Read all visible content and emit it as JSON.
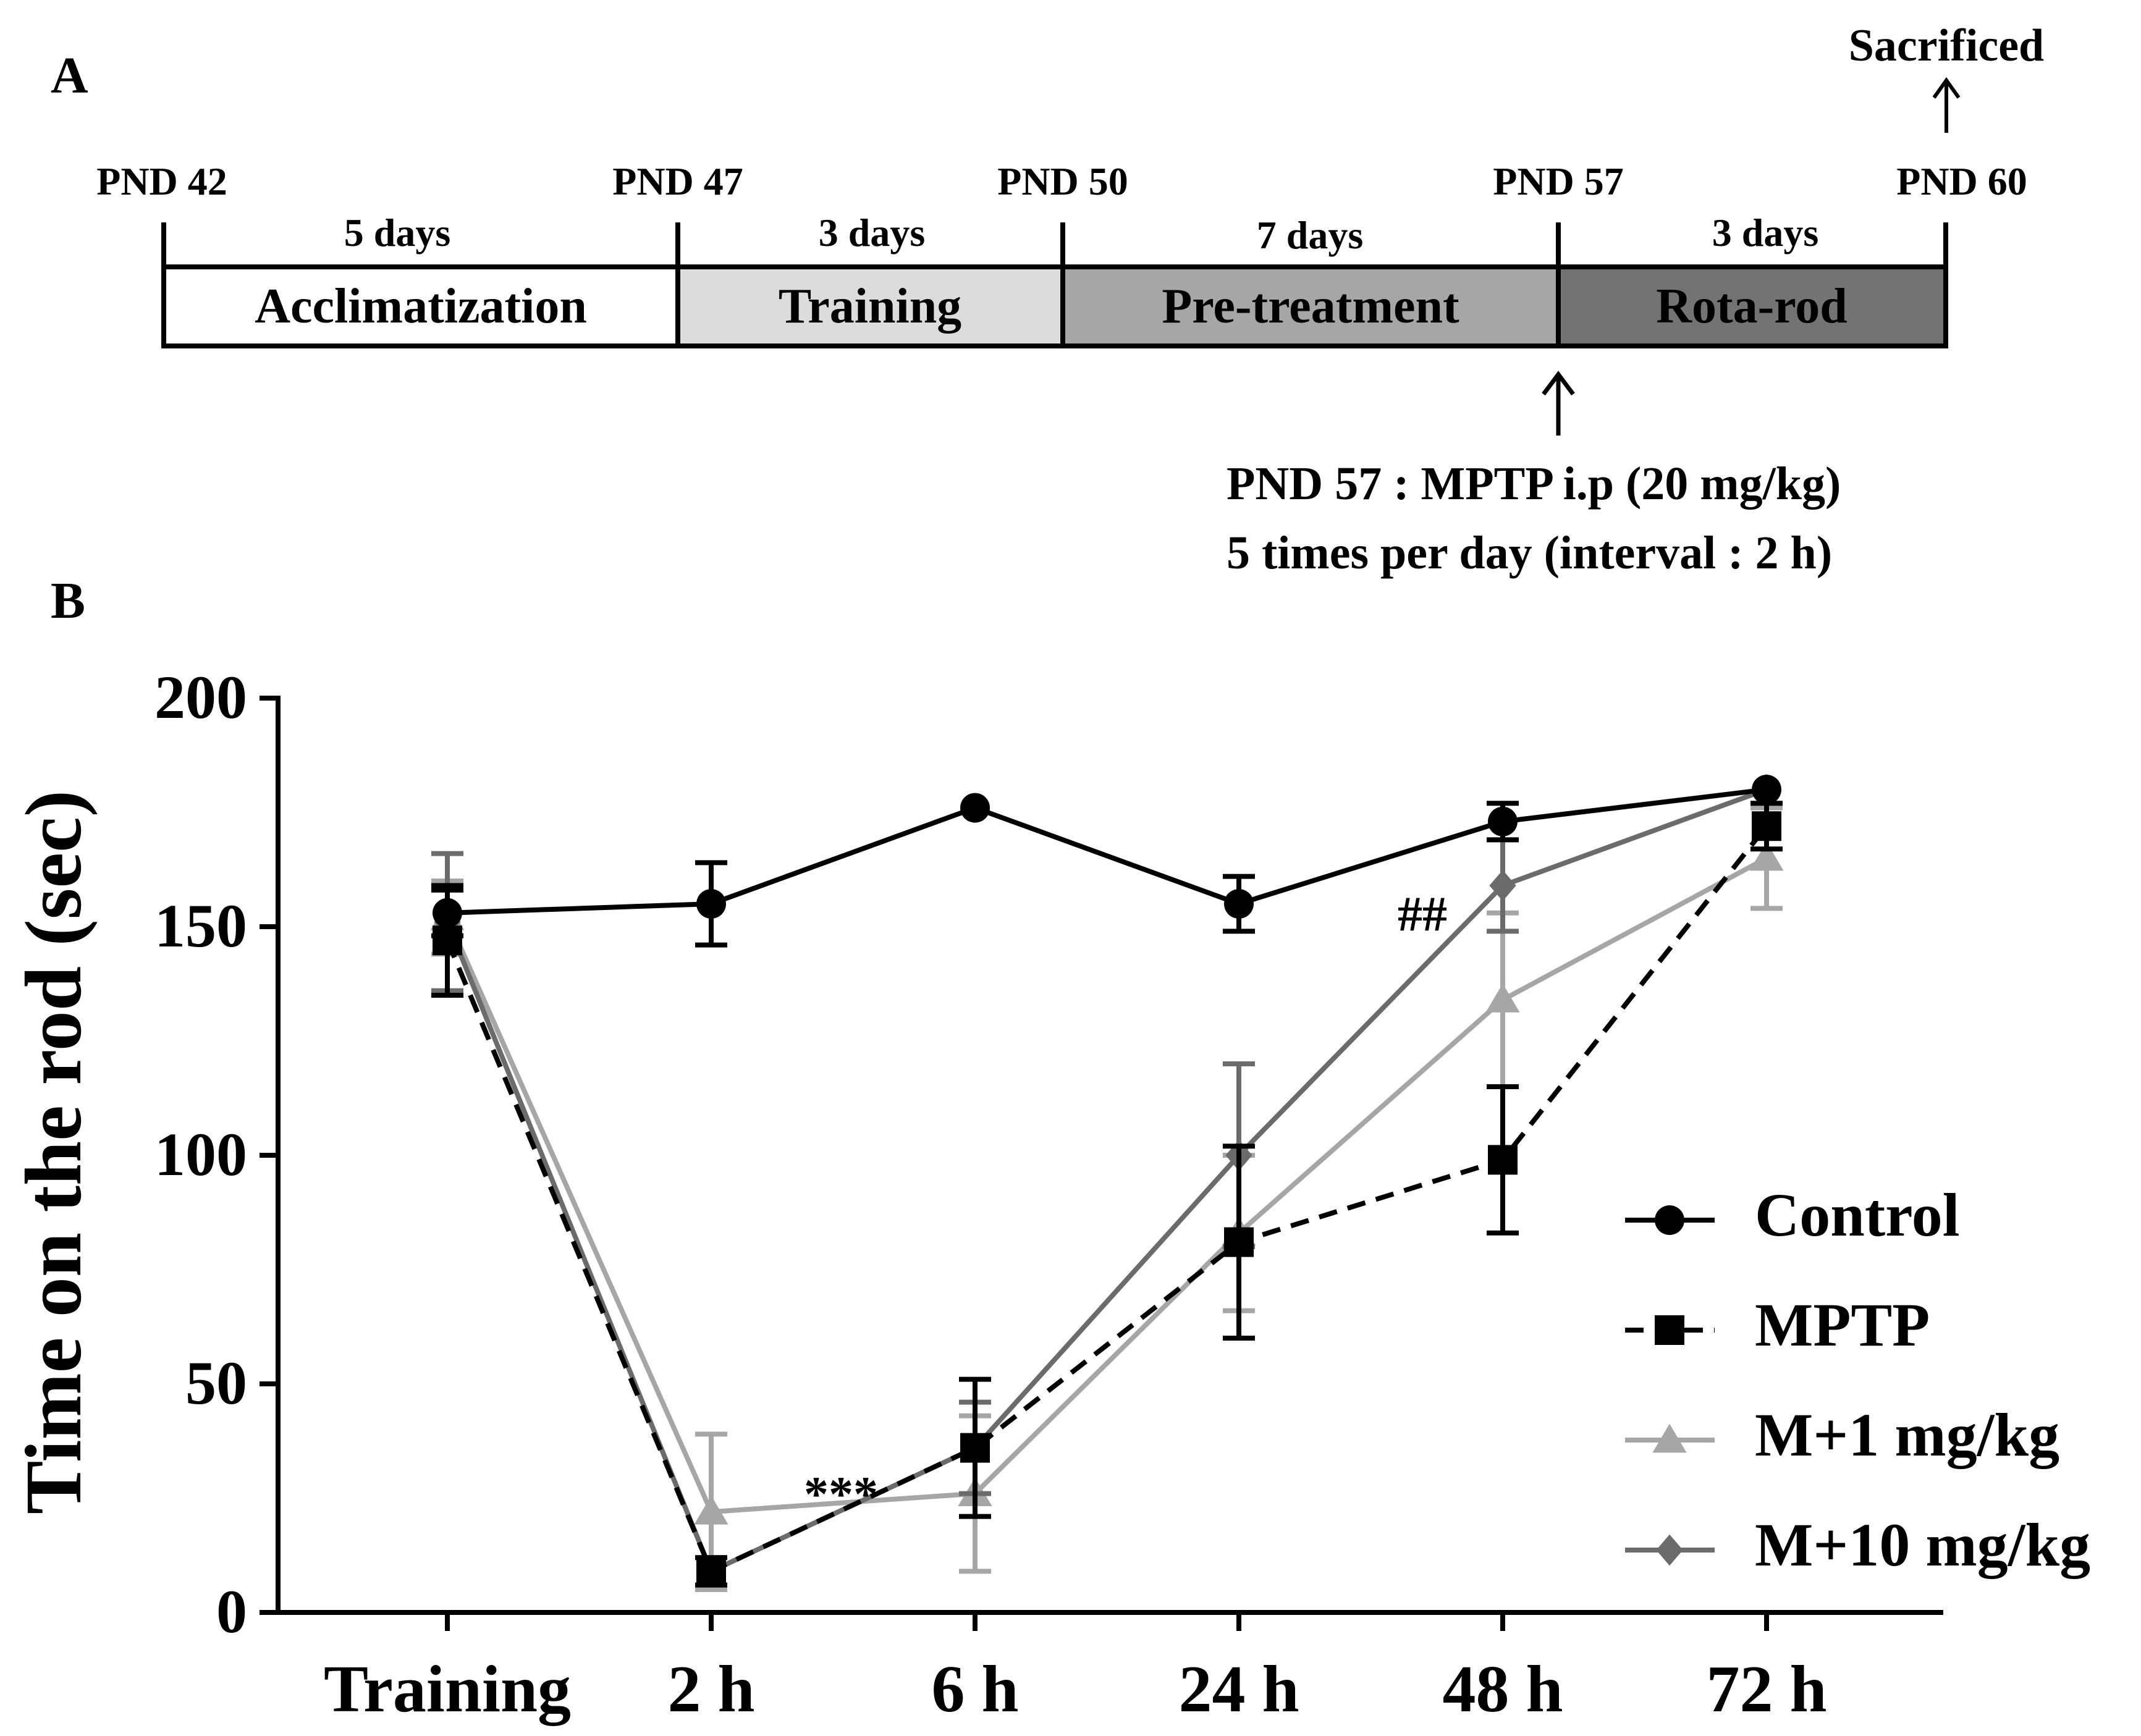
{
  "panel_a": {
    "label": "A",
    "sacrificed_label": "Sacrificed",
    "day_markers": [
      "PND 42",
      "PND 47",
      "PND 50",
      "PND 57",
      "PND 60"
    ],
    "durations": [
      "5 days",
      "3 days",
      "7 days",
      "3 days"
    ],
    "phases": [
      {
        "name": "Acclimatization",
        "color": "#ffffff"
      },
      {
        "name": "Training",
        "color": "#dcdcdc"
      },
      {
        "name": "Pre-treatment",
        "color": "#a6a6a6"
      },
      {
        "name": "Rota-rod",
        "color": "#737373"
      }
    ],
    "note_line1": "PND 57 : MPTP i.p (20 mg/kg)",
    "note_line2": "5 times per day (interval : 2 h)"
  },
  "panel_b": {
    "label": "B"
  },
  "chart_data": {
    "type": "line",
    "ylabel": "Time on the rod (sec)",
    "xlabel": "",
    "ylim": [
      0,
      200
    ],
    "yticks": [
      "0",
      "50",
      "100",
      "150",
      "200"
    ],
    "categories": [
      "Training",
      "2 h",
      "6 h",
      "24 h",
      "48 h",
      "72 h"
    ],
    "series": [
      {
        "name": "Control",
        "color": "#000000",
        "marker": "circle",
        "dashed": false,
        "values": [
          153,
          155,
          176,
          155,
          173,
          180
        ],
        "errors": [
          5,
          9,
          0,
          6,
          4,
          0
        ]
      },
      {
        "name": "MPTP",
        "color": "#000000",
        "marker": "square",
        "dashed": true,
        "values": [
          147,
          9,
          36,
          81,
          99,
          172
        ],
        "errors": [
          12,
          3,
          15,
          21,
          16,
          5
        ]
      },
      {
        "name": "M+1 mg/kg",
        "color": "#a6a6a6",
        "marker": "triangle",
        "dashed": false,
        "values": [
          152,
          22,
          26,
          83,
          134,
          165
        ],
        "errors": [
          8,
          17,
          17,
          17,
          19,
          11
        ]
      },
      {
        "name": "M+10 mg/kg",
        "color": "#6b6b6b",
        "marker": "diamond",
        "dashed": false,
        "values": [
          151,
          9,
          36,
          100,
          159,
          180
        ],
        "errors": [
          15,
          3,
          10,
          20,
          10,
          0
        ]
      }
    ],
    "annotations": [
      {
        "text": "***",
        "category": "2 h",
        "y": 26
      },
      {
        "text": "##",
        "category": "48 h",
        "y": 153
      }
    ]
  }
}
